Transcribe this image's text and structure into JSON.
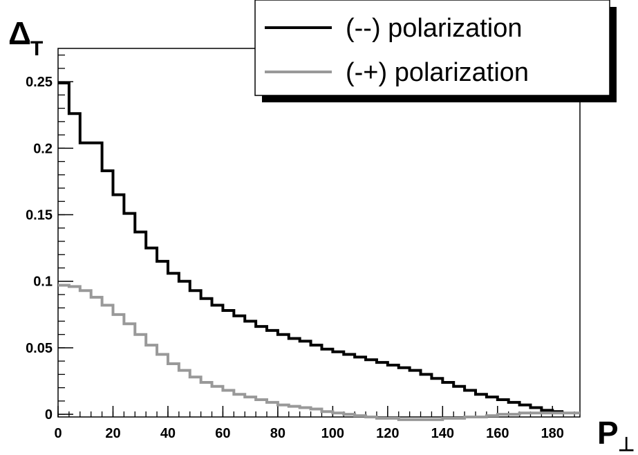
{
  "chart_data": {
    "type": "line",
    "step": true,
    "xlabel": "P",
    "xlabel_symbol": "⊥",
    "ylabel": "Δ",
    "ylabel_sub": "T",
    "xlim": [
      0,
      190
    ],
    "ylim": [
      -0.002,
      0.275
    ],
    "xticks": [
      0,
      20,
      40,
      60,
      80,
      100,
      120,
      140,
      160,
      180
    ],
    "yticks": [
      0,
      0.05,
      0.1,
      0.15,
      0.2,
      0.25
    ],
    "ytick_labels": [
      "0",
      "0.05",
      "0.1",
      "0.15",
      "0.2",
      "0.25"
    ],
    "grid": false,
    "legend_position": "top-right",
    "bin_edges": [
      0,
      4,
      8,
      12,
      16,
      20,
      24,
      28,
      32,
      36,
      40,
      44,
      48,
      52,
      56,
      60,
      64,
      68,
      72,
      76,
      80,
      84,
      88,
      92,
      96,
      100,
      104,
      108,
      112,
      116,
      120,
      124,
      128,
      132,
      136,
      140,
      144,
      148,
      152,
      156,
      160,
      164,
      168,
      172,
      176,
      180,
      184,
      188,
      190
    ],
    "series": [
      {
        "name": "(--) polarization",
        "color": "#000000",
        "values": [
          0.249,
          0.226,
          0.204,
          0.204,
          0.183,
          0.165,
          0.151,
          0.137,
          0.125,
          0.115,
          0.106,
          0.1,
          0.093,
          0.087,
          0.082,
          0.078,
          0.074,
          0.07,
          0.066,
          0.063,
          0.06,
          0.057,
          0.055,
          0.052,
          0.049,
          0.047,
          0.045,
          0.043,
          0.041,
          0.039,
          0.037,
          0.035,
          0.033,
          0.03,
          0.027,
          0.024,
          0.021,
          0.018,
          0.015,
          0.013,
          0.011,
          0.009,
          0.007,
          0.005,
          0.003,
          0.002,
          null,
          null
        ]
      },
      {
        "name": "(-+) polarization",
        "color": "#999999",
        "values": [
          0.097,
          0.096,
          0.093,
          0.088,
          0.082,
          0.075,
          0.068,
          0.06,
          0.052,
          0.045,
          0.038,
          0.033,
          0.028,
          0.024,
          0.021,
          0.018,
          0.015,
          0.013,
          0.011,
          0.009,
          0.007,
          0.006,
          0.005,
          0.004,
          0.002,
          0.001,
          0.0,
          -0.001,
          -0.002,
          -0.003,
          -0.003,
          -0.004,
          -0.004,
          -0.004,
          -0.004,
          -0.003,
          -0.003,
          -0.002,
          -0.002,
          -0.001,
          0.0,
          0.0,
          0.001,
          0.001,
          0.001,
          0.001,
          0.001,
          0.001
        ]
      }
    ]
  }
}
